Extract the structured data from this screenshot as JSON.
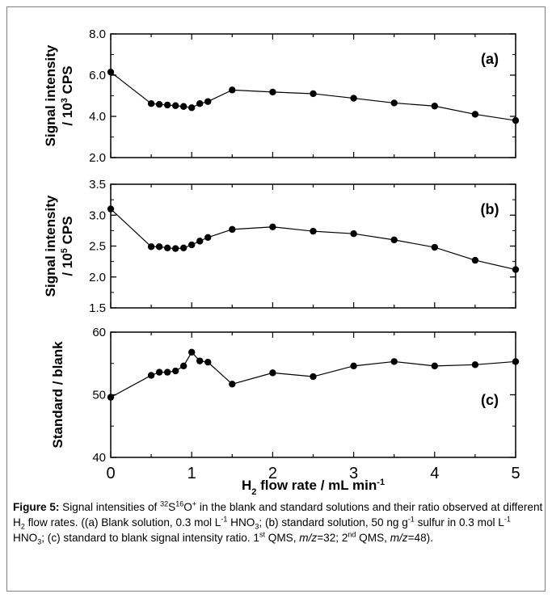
{
  "chart_data": [
    {
      "type": "line",
      "panel_label": "(a)",
      "ylabel_main": "Signal intensity",
      "ylabel_unit_prefix": "/ 10",
      "ylabel_unit_exp": "3",
      "ylabel_unit_suffix": " CPS",
      "ylim": [
        2.0,
        8.0
      ],
      "yticks": [
        "2.0",
        "4.0",
        "6.0",
        "8.0"
      ],
      "xlim": [
        0,
        5
      ],
      "x": [
        0,
        0.5,
        0.6,
        0.7,
        0.8,
        0.9,
        1.0,
        1.1,
        1.2,
        1.5,
        2.0,
        2.5,
        3.0,
        3.5,
        4.0,
        4.5,
        5.0
      ],
      "y": [
        6.15,
        4.62,
        4.58,
        4.55,
        4.52,
        4.48,
        4.42,
        4.62,
        4.72,
        5.28,
        5.18,
        5.1,
        4.88,
        4.65,
        4.5,
        4.1,
        3.8
      ]
    },
    {
      "type": "line",
      "panel_label": "(b)",
      "ylabel_main": "Signal intensity",
      "ylabel_unit_prefix": "/ 10",
      "ylabel_unit_exp": "5",
      "ylabel_unit_suffix": " CPS",
      "ylim": [
        1.5,
        3.5
      ],
      "yticks": [
        "1.5",
        "2.0",
        "2.5",
        "3.0",
        "3.5"
      ],
      "xlim": [
        0,
        5
      ],
      "x": [
        0,
        0.5,
        0.6,
        0.7,
        0.8,
        0.9,
        1.0,
        1.1,
        1.2,
        1.5,
        2.0,
        2.5,
        3.0,
        3.5,
        4.0,
        4.5,
        5.0
      ],
      "y": [
        3.1,
        2.49,
        2.49,
        2.47,
        2.46,
        2.47,
        2.52,
        2.58,
        2.64,
        2.77,
        2.81,
        2.74,
        2.7,
        2.6,
        2.48,
        2.27,
        2.12
      ]
    },
    {
      "type": "line",
      "panel_label": "(c)",
      "ylabel_main": "Standard / blank",
      "ylim": [
        40,
        60
      ],
      "yticks": [
        "40",
        "50",
        "60"
      ],
      "xlim": [
        0,
        5
      ],
      "xticks": [
        "0",
        "1",
        "2",
        "3",
        "4",
        "5"
      ],
      "x": [
        0,
        0.5,
        0.6,
        0.7,
        0.8,
        0.9,
        1.0,
        1.1,
        1.2,
        1.5,
        2.0,
        2.5,
        3.0,
        3.5,
        4.0,
        4.5,
        5.0
      ],
      "y": [
        49.6,
        53.1,
        53.6,
        53.6,
        53.8,
        54.6,
        56.8,
        55.4,
        55.2,
        51.7,
        53.5,
        52.9,
        54.6,
        55.3,
        54.6,
        54.8,
        55.3
      ],
      "xlabel_main": "H",
      "xlabel_sub": "2",
      "xlabel_rest": " flow rate / mL min",
      "xlabel_exp": "-1"
    }
  ],
  "caption": {
    "lead": "Figure 5:",
    "t1": " Signal intensities of ",
    "s1": "32",
    "t2": "S",
    "s2": "16",
    "t3": "O",
    "s3": "+",
    "t4": " in the blank and standard solutions and their ratio observed at different H",
    "sub1": "2",
    "t5": " flow rates. ((a) Blank solution, 0.3 mol L",
    "s4": "-1",
    "t6": " HNO",
    "sub2": "3",
    "t7": "; (b) standard solution, 50 ng g",
    "s5": "-1",
    "t8": " sulfur in 0.3 mol L",
    "s6": "-1",
    "t9": " HNO",
    "sub3": "3",
    "t10": "; (c) standard to blank signal intensity ratio.  1",
    "s7": "st",
    "t11": " QMS, ",
    "i1": "m/z",
    "t12": "=32; 2",
    "s8": "nd",
    "t13": " QMS, ",
    "i2": "m/z",
    "t14": "=48)."
  }
}
